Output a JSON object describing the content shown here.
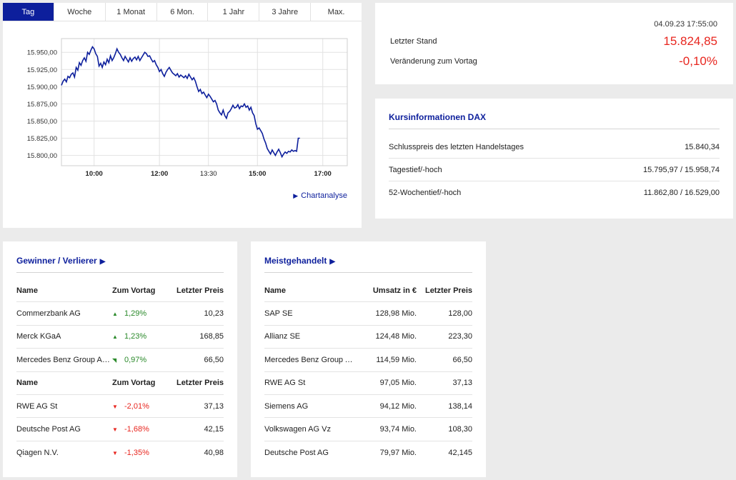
{
  "tabs": [
    "Tag",
    "Woche",
    "1 Monat",
    "6 Mon.",
    "1 Jahr",
    "3 Jahre",
    "Max."
  ],
  "active_tab": 0,
  "chart": {
    "link_label": "Chartanalyse",
    "link_icon": "play-triangle-icon"
  },
  "chart_data": {
    "type": "line",
    "yticks": [
      "15.950,00",
      "15.925,00",
      "15.900,00",
      "15.875,00",
      "15.850,00",
      "15.825,00",
      "15.800,00"
    ],
    "xticks": [
      "10:00",
      "12:00",
      "13:30",
      "15:00",
      "17:00"
    ],
    "ylim": [
      15785,
      15970
    ],
    "xlim": [
      9.0,
      17.75
    ],
    "series": [
      {
        "color": "#0d1f9c",
        "points": [
          [
            9.0,
            15902
          ],
          [
            9.05,
            15908
          ],
          [
            9.1,
            15911
          ],
          [
            9.15,
            15907
          ],
          [
            9.2,
            15915
          ],
          [
            9.25,
            15913
          ],
          [
            9.3,
            15918
          ],
          [
            9.35,
            15920
          ],
          [
            9.4,
            15914
          ],
          [
            9.45,
            15928
          ],
          [
            9.5,
            15924
          ],
          [
            9.55,
            15935
          ],
          [
            9.6,
            15931
          ],
          [
            9.65,
            15938
          ],
          [
            9.7,
            15942
          ],
          [
            9.75,
            15937
          ],
          [
            9.8,
            15950
          ],
          [
            9.85,
            15947
          ],
          [
            9.9,
            15953
          ],
          [
            9.95,
            15958
          ],
          [
            10.0,
            15955
          ],
          [
            10.05,
            15948
          ],
          [
            10.1,
            15944
          ],
          [
            10.15,
            15930
          ],
          [
            10.2,
            15934
          ],
          [
            10.25,
            15928
          ],
          [
            10.3,
            15936
          ],
          [
            10.35,
            15932
          ],
          [
            10.4,
            15940
          ],
          [
            10.45,
            15935
          ],
          [
            10.5,
            15945
          ],
          [
            10.55,
            15938
          ],
          [
            10.6,
            15942
          ],
          [
            10.65,
            15948
          ],
          [
            10.7,
            15955
          ],
          [
            10.75,
            15950
          ],
          [
            10.8,
            15947
          ],
          [
            10.85,
            15942
          ],
          [
            10.9,
            15938
          ],
          [
            10.95,
            15944
          ],
          [
            11.0,
            15940
          ],
          [
            11.05,
            15936
          ],
          [
            11.1,
            15942
          ],
          [
            11.15,
            15937
          ],
          [
            11.2,
            15941
          ],
          [
            11.25,
            15943
          ],
          [
            11.3,
            15939
          ],
          [
            11.35,
            15944
          ],
          [
            11.4,
            15938
          ],
          [
            11.45,
            15942
          ],
          [
            11.5,
            15946
          ],
          [
            11.55,
            15950
          ],
          [
            11.6,
            15948
          ],
          [
            11.65,
            15944
          ],
          [
            11.7,
            15945
          ],
          [
            11.75,
            15940
          ],
          [
            11.8,
            15936
          ],
          [
            11.85,
            15938
          ],
          [
            11.9,
            15932
          ],
          [
            11.95,
            15928
          ],
          [
            12.0,
            15922
          ],
          [
            12.05,
            15925
          ],
          [
            12.1,
            15919
          ],
          [
            12.15,
            15915
          ],
          [
            12.2,
            15921
          ],
          [
            12.25,
            15925
          ],
          [
            12.3,
            15928
          ],
          [
            12.35,
            15924
          ],
          [
            12.4,
            15920
          ],
          [
            12.45,
            15918
          ],
          [
            12.5,
            15916
          ],
          [
            12.55,
            15919
          ],
          [
            12.6,
            15914
          ],
          [
            12.65,
            15917
          ],
          [
            12.7,
            15915
          ],
          [
            12.75,
            15913
          ],
          [
            12.8,
            15916
          ],
          [
            12.85,
            15912
          ],
          [
            12.9,
            15918
          ],
          [
            12.95,
            15914
          ],
          [
            13.0,
            15910
          ],
          [
            13.05,
            15913
          ],
          [
            13.1,
            15908
          ],
          [
            13.15,
            15900
          ],
          [
            13.2,
            15893
          ],
          [
            13.25,
            15896
          ],
          [
            13.3,
            15890
          ],
          [
            13.35,
            15892
          ],
          [
            13.4,
            15888
          ],
          [
            13.45,
            15884
          ],
          [
            13.5,
            15889
          ],
          [
            13.55,
            15886
          ],
          [
            13.6,
            15882
          ],
          [
            13.65,
            15878
          ],
          [
            13.7,
            15880
          ],
          [
            13.75,
            15875
          ],
          [
            13.8,
            15866
          ],
          [
            13.85,
            15862
          ],
          [
            13.9,
            15859
          ],
          [
            13.95,
            15866
          ],
          [
            14.0,
            15858
          ],
          [
            14.05,
            15854
          ],
          [
            14.1,
            15862
          ],
          [
            14.15,
            15864
          ],
          [
            14.2,
            15868
          ],
          [
            14.25,
            15873
          ],
          [
            14.3,
            15869
          ],
          [
            14.35,
            15870
          ],
          [
            14.4,
            15874
          ],
          [
            14.45,
            15868
          ],
          [
            14.5,
            15872
          ],
          [
            14.55,
            15871
          ],
          [
            14.6,
            15875
          ],
          [
            14.65,
            15870
          ],
          [
            14.7,
            15872
          ],
          [
            14.75,
            15866
          ],
          [
            14.8,
            15870
          ],
          [
            14.85,
            15862
          ],
          [
            14.9,
            15858
          ],
          [
            14.95,
            15846
          ],
          [
            15.0,
            15838
          ],
          [
            15.05,
            15840
          ],
          [
            15.1,
            15836
          ],
          [
            15.15,
            15832
          ],
          [
            15.2,
            15824
          ],
          [
            15.25,
            15818
          ],
          [
            15.3,
            15810
          ],
          [
            15.35,
            15806
          ],
          [
            15.4,
            15802
          ],
          [
            15.45,
            15808
          ],
          [
            15.5,
            15804
          ],
          [
            15.55,
            15800
          ],
          [
            15.6,
            15805
          ],
          [
            15.65,
            15809
          ],
          [
            15.7,
            15804
          ],
          [
            15.75,
            15798
          ],
          [
            15.8,
            15802
          ],
          [
            15.85,
            15805
          ],
          [
            15.9,
            15803
          ],
          [
            15.95,
            15806
          ],
          [
            16.0,
            15805
          ],
          [
            16.05,
            15808
          ],
          [
            16.1,
            15806
          ],
          [
            16.15,
            15807
          ],
          [
            16.2,
            15806
          ],
          [
            16.25,
            15825
          ],
          [
            16.3,
            15825
          ]
        ]
      }
    ]
  },
  "quote": {
    "date": "04.09.23 17:55:00",
    "last_label": "Letzter Stand",
    "last_value": "15.824,85",
    "change_label": "Veränderung zum Vortag",
    "change_value": "-0,10%"
  },
  "info": {
    "title": "Kursinformationen DAX",
    "rows": [
      {
        "label": "Schlusspreis des letzten Handelstages",
        "value": "15.840,34"
      },
      {
        "label": "Tagestief/-hoch",
        "value": "15.795,97 / 15.958,74"
      },
      {
        "label": "52-Wochentief/-hoch",
        "value": "11.862,80 / 16.529,00"
      }
    ]
  },
  "gainers": {
    "title": "Gewinner / Verlierer",
    "title_icon": "play-triangle-icon",
    "head": {
      "name": "Name",
      "change": "Zum Vortag",
      "price": "Letzter Preis"
    },
    "winners": [
      {
        "name": "Commerzbank AG",
        "change": "1,29%",
        "price": "10,23",
        "dir": "up",
        "icon": "triangle-up-icon"
      },
      {
        "name": "Merck KGaA",
        "change": "1,23%",
        "price": "168,85",
        "dir": "up",
        "icon": "triangle-up-icon"
      },
      {
        "name": "Mercedes Benz Group AG …",
        "change": "0,97%",
        "price": "66,50",
        "dir": "up",
        "icon": "triangle-down-left-icon"
      }
    ],
    "losers": [
      {
        "name": "RWE AG St",
        "change": "-2,01%",
        "price": "37,13",
        "dir": "down",
        "icon": "triangle-down-icon"
      },
      {
        "name": "Deutsche Post AG",
        "change": "-1,68%",
        "price": "42,15",
        "dir": "down",
        "icon": "triangle-down-icon"
      },
      {
        "name": "Qiagen N.V.",
        "change": "-1,35%",
        "price": "40,98",
        "dir": "down",
        "icon": "triangle-down-icon"
      }
    ]
  },
  "most_traded": {
    "title": "Meistgehandelt",
    "title_icon": "play-triangle-icon",
    "head": {
      "name": "Name",
      "volume": "Umsatz in €",
      "price": "Letzter Preis"
    },
    "rows": [
      {
        "name": "SAP SE",
        "volume": "128,98 Mio.",
        "price": "128,00"
      },
      {
        "name": "Allianz SE",
        "volume": "124,48 Mio.",
        "price": "223,30"
      },
      {
        "name": "Mercedes Benz Group AG …",
        "volume": "114,59 Mio.",
        "price": "66,50"
      },
      {
        "name": "RWE AG St",
        "volume": "97,05 Mio.",
        "price": "37,13"
      },
      {
        "name": "Siemens AG",
        "volume": "94,12 Mio.",
        "price": "138,14"
      },
      {
        "name": "Volkswagen AG Vz",
        "volume": "93,74 Mio.",
        "price": "108,30"
      },
      {
        "name": "Deutsche Post AG",
        "volume": "79,97 Mio.",
        "price": "42,145"
      }
    ]
  }
}
